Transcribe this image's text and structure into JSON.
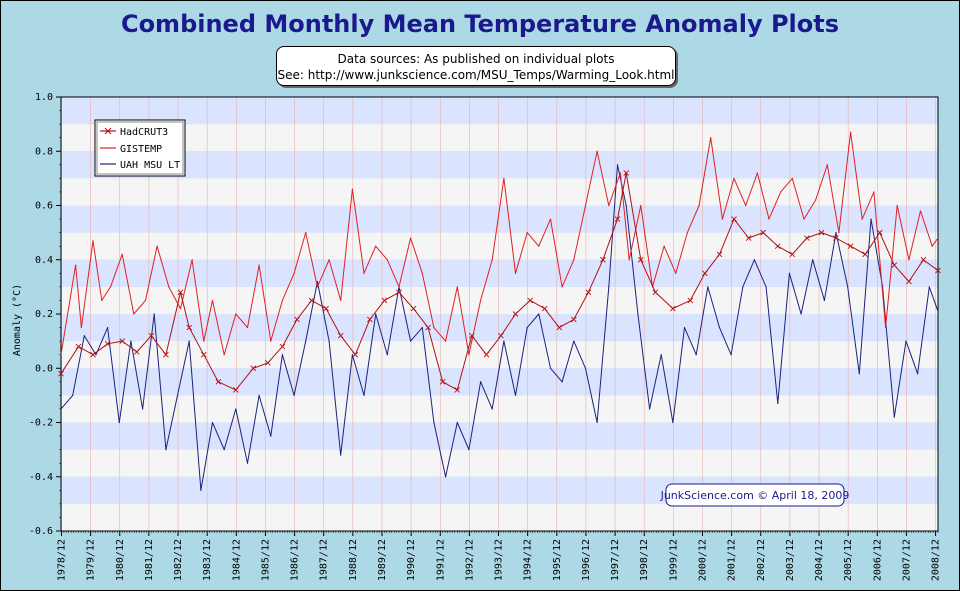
{
  "title": "Combined Monthly Mean Temperature Anomaly Plots",
  "sources": {
    "line1": "Data sources: As published on individual plots",
    "line2": "See: http://www.junkscience.com/MSU_Temps/Warming_Look.html"
  },
  "credit": "JunkScience.com © April 18, 2009",
  "colors": {
    "hadcrut": "#b01010",
    "gistemp": "#e02020",
    "uah": "#1a237e",
    "band_blue": "#dbe4ff",
    "band_white": "#f5f5f5"
  },
  "chart_data": {
    "type": "line",
    "ylabel": "Anomaly (°C)",
    "ylim": [
      -0.6,
      1.0
    ],
    "yticks": [
      "1.0",
      "0.8",
      "0.6",
      "0.4",
      "0.2",
      "0.0",
      "-0.2",
      "-0.4",
      "-0.6"
    ],
    "xticks": [
      "1978/12",
      "1979/12",
      "1980/12",
      "1981/12",
      "1982/12",
      "1983/12",
      "1984/12",
      "1985/12",
      "1986/12",
      "1987/12",
      "1988/12",
      "1989/12",
      "1990/12",
      "1991/12",
      "1992/12",
      "1993/12",
      "1994/12",
      "1995/12",
      "1996/12",
      "1997/12",
      "1998/12",
      "1999/12",
      "2000/12",
      "2001/12",
      "2002/12",
      "2003/12",
      "2004/12",
      "2005/12",
      "2006/12",
      "2007/12",
      "2008/12"
    ],
    "legend_position": "top-left",
    "grid": true,
    "series": [
      {
        "name": "HadCRUT3",
        "marker": "x",
        "x": [
          1978.9,
          1979.5,
          1980.0,
          1980.5,
          1981.0,
          1981.5,
          1982.0,
          1982.5,
          1983.0,
          1983.3,
          1983.8,
          1984.3,
          1984.9,
          1985.5,
          1986.0,
          1986.5,
          1987.0,
          1987.5,
          1988.0,
          1988.5,
          1989.0,
          1989.5,
          1990.0,
          1990.5,
          1991.0,
          1991.5,
          1992.0,
          1992.5,
          1993.0,
          1993.5,
          1994.0,
          1994.5,
          1995.0,
          1995.5,
          1996.0,
          1996.5,
          1997.0,
          1997.5,
          1998.0,
          1998.3,
          1998.8,
          1999.3,
          1999.9,
          2000.5,
          2001.0,
          2001.5,
          2002.0,
          2002.5,
          2003.0,
          2003.5,
          2004.0,
          2004.5,
          2005.0,
          2005.5,
          2006.0,
          2006.5,
          2007.0,
          2007.5,
          2008.0,
          2008.5,
          2009.0
        ],
        "y": [
          -0.02,
          0.08,
          0.05,
          0.09,
          0.1,
          0.06,
          0.12,
          0.05,
          0.28,
          0.15,
          0.05,
          -0.05,
          -0.08,
          0.0,
          0.02,
          0.08,
          0.18,
          0.25,
          0.22,
          0.12,
          0.05,
          0.18,
          0.25,
          0.28,
          0.22,
          0.15,
          -0.05,
          -0.08,
          0.12,
          0.05,
          0.12,
          0.2,
          0.25,
          0.22,
          0.15,
          0.18,
          0.28,
          0.4,
          0.55,
          0.72,
          0.4,
          0.28,
          0.22,
          0.25,
          0.35,
          0.42,
          0.55,
          0.48,
          0.5,
          0.45,
          0.42,
          0.48,
          0.5,
          0.48,
          0.45,
          0.42,
          0.5,
          0.38,
          0.32,
          0.4,
          0.36
        ]
      },
      {
        "name": "GISTEMP",
        "x": [
          1978.9,
          1979.4,
          1979.6,
          1980.0,
          1980.3,
          1980.6,
          1981.0,
          1981.4,
          1981.8,
          1982.2,
          1982.6,
          1983.0,
          1983.4,
          1983.8,
          1984.1,
          1984.5,
          1984.9,
          1985.3,
          1985.7,
          1986.1,
          1986.5,
          1986.9,
          1987.3,
          1987.7,
          1988.1,
          1988.5,
          1988.9,
          1989.3,
          1989.7,
          1990.1,
          1990.5,
          1990.9,
          1991.3,
          1991.7,
          1992.1,
          1992.5,
          1992.9,
          1993.3,
          1993.7,
          1994.1,
          1994.5,
          1994.9,
          1995.3,
          1995.7,
          1996.1,
          1996.5,
          1996.9,
          1997.3,
          1997.7,
          1998.1,
          1998.4,
          1998.8,
          1999.2,
          1999.6,
          2000.0,
          2000.4,
          2000.8,
          2001.2,
          2001.6,
          2002.0,
          2002.4,
          2002.8,
          2003.2,
          2003.6,
          2004.0,
          2004.4,
          2004.8,
          2005.2,
          2005.6,
          2006.0,
          2006.4,
          2006.8,
          2007.2,
          2007.6,
          2008.0,
          2008.4,
          2008.8,
          2009.0
        ],
        "y": [
          0.05,
          0.38,
          0.15,
          0.47,
          0.25,
          0.3,
          0.42,
          0.2,
          0.25,
          0.45,
          0.3,
          0.22,
          0.4,
          0.1,
          0.25,
          0.05,
          0.2,
          0.15,
          0.38,
          0.1,
          0.25,
          0.35,
          0.5,
          0.3,
          0.4,
          0.25,
          0.66,
          0.35,
          0.45,
          0.4,
          0.3,
          0.48,
          0.35,
          0.15,
          0.1,
          0.3,
          0.05,
          0.25,
          0.4,
          0.7,
          0.35,
          0.5,
          0.45,
          0.55,
          0.3,
          0.4,
          0.6,
          0.8,
          0.6,
          0.72,
          0.4,
          0.6,
          0.3,
          0.45,
          0.35,
          0.5,
          0.6,
          0.85,
          0.55,
          0.7,
          0.6,
          0.72,
          0.55,
          0.65,
          0.7,
          0.55,
          0.62,
          0.75,
          0.5,
          0.87,
          0.55,
          0.65,
          0.15,
          0.6,
          0.4,
          0.58,
          0.45,
          0.48
        ]
      },
      {
        "name": "UAH MSU LT",
        "x": [
          1978.9,
          1979.3,
          1979.7,
          1980.1,
          1980.5,
          1980.9,
          1981.3,
          1981.7,
          1982.1,
          1982.5,
          1982.9,
          1983.3,
          1983.7,
          1984.1,
          1984.5,
          1984.9,
          1985.3,
          1985.7,
          1986.1,
          1986.5,
          1986.9,
          1987.3,
          1987.7,
          1988.1,
          1988.5,
          1988.9,
          1989.3,
          1989.7,
          1990.1,
          1990.5,
          1990.9,
          1991.3,
          1991.7,
          1992.1,
          1992.5,
          1992.9,
          1993.3,
          1993.7,
          1994.1,
          1994.5,
          1994.9,
          1995.3,
          1995.7,
          1996.1,
          1996.5,
          1996.9,
          1997.3,
          1997.7,
          1998.0,
          1998.3,
          1998.7,
          1999.1,
          1999.5,
          1999.9,
          2000.3,
          2000.7,
          2001.1,
          2001.5,
          2001.9,
          2002.3,
          2002.7,
          2003.1,
          2003.5,
          2003.9,
          2004.3,
          2004.7,
          2005.1,
          2005.5,
          2005.9,
          2006.3,
          2006.7,
          2007.1,
          2007.5,
          2007.9,
          2008.3,
          2008.7,
          2009.0
        ],
        "y": [
          -0.15,
          -0.1,
          0.12,
          0.05,
          0.15,
          -0.2,
          0.1,
          -0.15,
          0.2,
          -0.3,
          -0.1,
          0.1,
          -0.45,
          -0.2,
          -0.3,
          -0.15,
          -0.35,
          -0.1,
          -0.25,
          0.05,
          -0.1,
          0.1,
          0.32,
          0.1,
          -0.32,
          0.05,
          -0.1,
          0.2,
          0.05,
          0.3,
          0.1,
          0.15,
          -0.2,
          -0.4,
          -0.2,
          -0.3,
          -0.05,
          -0.15,
          0.1,
          -0.1,
          0.15,
          0.2,
          0.0,
          -0.05,
          0.1,
          0.0,
          -0.2,
          0.3,
          0.75,
          0.6,
          0.2,
          -0.15,
          0.05,
          -0.2,
          0.15,
          0.05,
          0.3,
          0.15,
          0.05,
          0.3,
          0.4,
          0.3,
          -0.13,
          0.35,
          0.2,
          0.4,
          0.25,
          0.5,
          0.3,
          -0.02,
          0.55,
          0.3,
          -0.18,
          0.1,
          -0.02,
          0.3,
          0.21
        ]
      }
    ]
  }
}
